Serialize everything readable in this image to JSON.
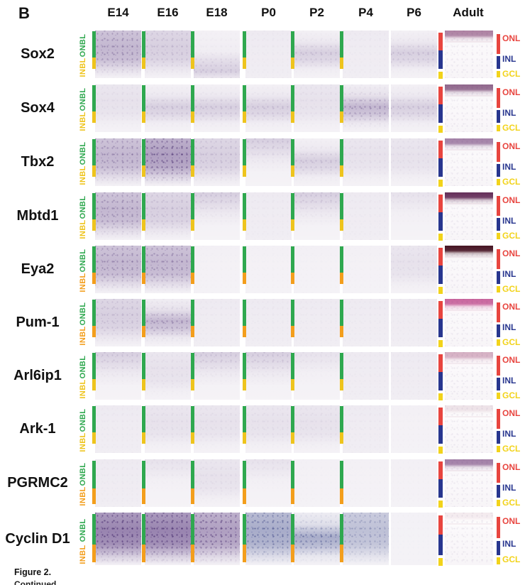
{
  "figure": {
    "panel_label": "B",
    "caption_title": "Figure 2.",
    "caption_continued": "Continued"
  },
  "columns": [
    "E14",
    "E16",
    "E18",
    "P0",
    "P2",
    "P4",
    "P6",
    "Adult"
  ],
  "axis_labels": {
    "onbl": "ONBL",
    "inbl": "INBL"
  },
  "layer_labels": {
    "onl": "ONL",
    "inl": "INL",
    "gcl": "GCL"
  },
  "colors": {
    "onbl_green": "#2fa84f",
    "inbl_gold": "#eec41d",
    "inbl_orange": "#f39e1c",
    "onl_red": "#e8453f",
    "inl_blue": "#28368f",
    "gcl_yellow": "#f2d31b",
    "stain_purple": "#684a8a",
    "stain_blue": "#5a64a0"
  },
  "rows": [
    {
      "gene": "Sox2",
      "inbl": "gold",
      "bar_profile": "default",
      "stain": [
        "3-full-p",
        "2-full-p",
        "2-bot-p",
        "1-low-p",
        "2-mid-p",
        "1-low-p",
        "2-mid-p"
      ],
      "adult_band": "#99628b",
      "adult_alpha": 0.8
    },
    {
      "gene": "Sox4",
      "inbl": "gold",
      "bar_profile": "default",
      "stain": [
        "1-full-p",
        "2-mid-p",
        "2-mid-p",
        "2-mid-p",
        "1-full-p",
        "3-mid-p",
        "2-mid-p"
      ],
      "adult_band": "#7d4d78",
      "adult_alpha": 0.85
    },
    {
      "gene": "Tbx2",
      "inbl": "gold",
      "bar_profile": "default",
      "stain": [
        "3-full-p",
        "4-full-p",
        "2-full-p",
        "2-top-p",
        "2-mid-p",
        "1-full-p",
        "1-full-p"
      ],
      "adult_band": "#8c6291",
      "adult_alpha": 0.8
    },
    {
      "gene": "Mbtd1",
      "inbl": "gold",
      "bar_profile": "default",
      "stain": [
        "3-full-p",
        "2-full-p",
        "2-top-p",
        "1-low-p",
        "2-top-p",
        "1-low-p",
        "1-top-p"
      ],
      "adult_band": "#5d2450",
      "adult_alpha": 0.95
    },
    {
      "gene": "Eya2",
      "inbl": "orange",
      "bar_profile": "default",
      "stain": [
        "3-full-p",
        "3-full-p",
        "0-low-p",
        "0-low-p",
        "0-low-p",
        "0-low-p",
        "1-full-p"
      ],
      "adult_band": "#471523",
      "adult_alpha": 1.0
    },
    {
      "gene": "Pum-1",
      "inbl": "orange",
      "bar_profile": "default",
      "stain": [
        "2-full-p",
        "3-mid-p",
        "1-low-p",
        "1-low-p",
        "1-low-p",
        "1-low-p",
        "1-low-p"
      ],
      "adult_band": "#bf4a8c",
      "adult_alpha": 0.85
    },
    {
      "gene": "Arl6ip1",
      "inbl": "gold",
      "bar_profile": "default",
      "stain": [
        "2-top-p",
        "1-full-p",
        "2-top-p",
        "2-top-p",
        "1-top-p",
        "1-low-p",
        "1-low-p"
      ],
      "adult_band": "#c38da9",
      "adult_alpha": 0.7
    },
    {
      "gene": "Ark-1",
      "inbl": "gold",
      "bar_profile": "default",
      "stain": [
        "1-low-p",
        "1-full-p",
        "1-full-p",
        "1-full-p",
        "1-full-p",
        "1-low-p",
        "0-low-p"
      ],
      "adult_band": "#dcc6d0",
      "adult_alpha": 0.5
    },
    {
      "gene": "PGRMC2",
      "inbl": "orange",
      "bar_profile": "deep",
      "stain": [
        "1-low-p",
        "1-top-p",
        "1-full-p",
        "1-top-p",
        "0-low-p",
        "0-low-p",
        "0-low-p"
      ],
      "adult_band": "#8a5f90",
      "adult_alpha": 0.8
    },
    {
      "gene": "Cyclin D1",
      "inbl": "orange",
      "bar_profile": "deep",
      "stain": [
        "5-full-p",
        "5-full-p",
        "4-full-p",
        "4-full-b",
        "4-mid-b",
        "3-full-b",
        "0-low-b"
      ],
      "adult_band": "#e6d2da",
      "adult_alpha": 0.45
    }
  ]
}
